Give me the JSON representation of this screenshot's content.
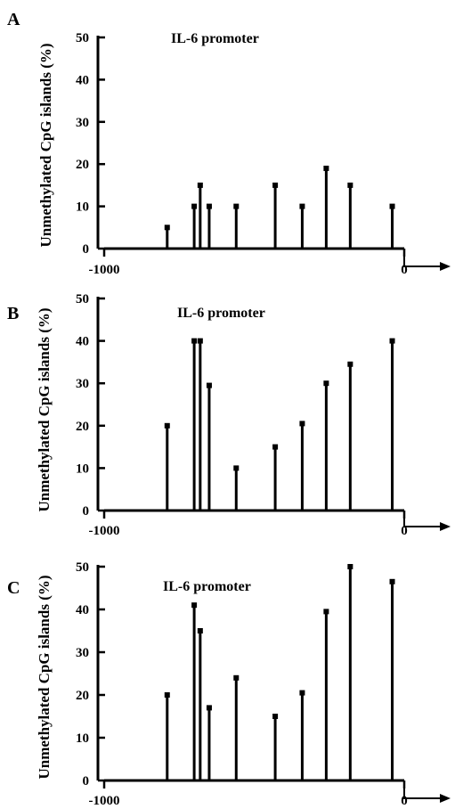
{
  "chart_data": [
    {
      "type": "bar",
      "panel": "A",
      "title": "IL-6 promoter",
      "xlabel": "",
      "ylabel": "Unmethylated CpG islands (%)",
      "xlim": [
        -1000,
        0
      ],
      "ylim": [
        0,
        50
      ],
      "yticks": [
        0,
        10,
        20,
        30,
        40,
        50
      ],
      "xtick_labels": [
        "-1000",
        "0"
      ],
      "x": [
        -790,
        -700,
        -680,
        -650,
        -560,
        -430,
        -340,
        -260,
        -180,
        -40
      ],
      "values": [
        5,
        10,
        15,
        10,
        10,
        15,
        10,
        19,
        15,
        10
      ]
    },
    {
      "type": "bar",
      "panel": "B",
      "title": "IL-6 promoter",
      "xlabel": "",
      "ylabel": "Unmethylated CpG islands (%)",
      "xlim": [
        -1000,
        0
      ],
      "ylim": [
        0,
        50
      ],
      "yticks": [
        0,
        10,
        20,
        30,
        40,
        50
      ],
      "xtick_labels": [
        "-1000",
        "0"
      ],
      "x": [
        -790,
        -700,
        -680,
        -650,
        -560,
        -430,
        -340,
        -260,
        -180,
        -40
      ],
      "values": [
        20,
        40,
        40,
        29.5,
        10,
        15,
        20.5,
        30,
        34.5,
        40
      ]
    },
    {
      "type": "bar",
      "panel": "C",
      "title": "IL-6 promoter",
      "xlabel": "",
      "ylabel": "Unmethylated CpG islands (%)",
      "xlim": [
        -1000,
        0
      ],
      "ylim": [
        0,
        50
      ],
      "yticks": [
        0,
        10,
        20,
        30,
        40,
        50
      ],
      "xtick_labels": [
        "-1000",
        "0"
      ],
      "x": [
        -790,
        -700,
        -680,
        -650,
        -560,
        -430,
        -340,
        -260,
        -180,
        -40
      ],
      "values": [
        20,
        41,
        35,
        17,
        24,
        15,
        20.5,
        39.5,
        50,
        46.5
      ]
    }
  ]
}
